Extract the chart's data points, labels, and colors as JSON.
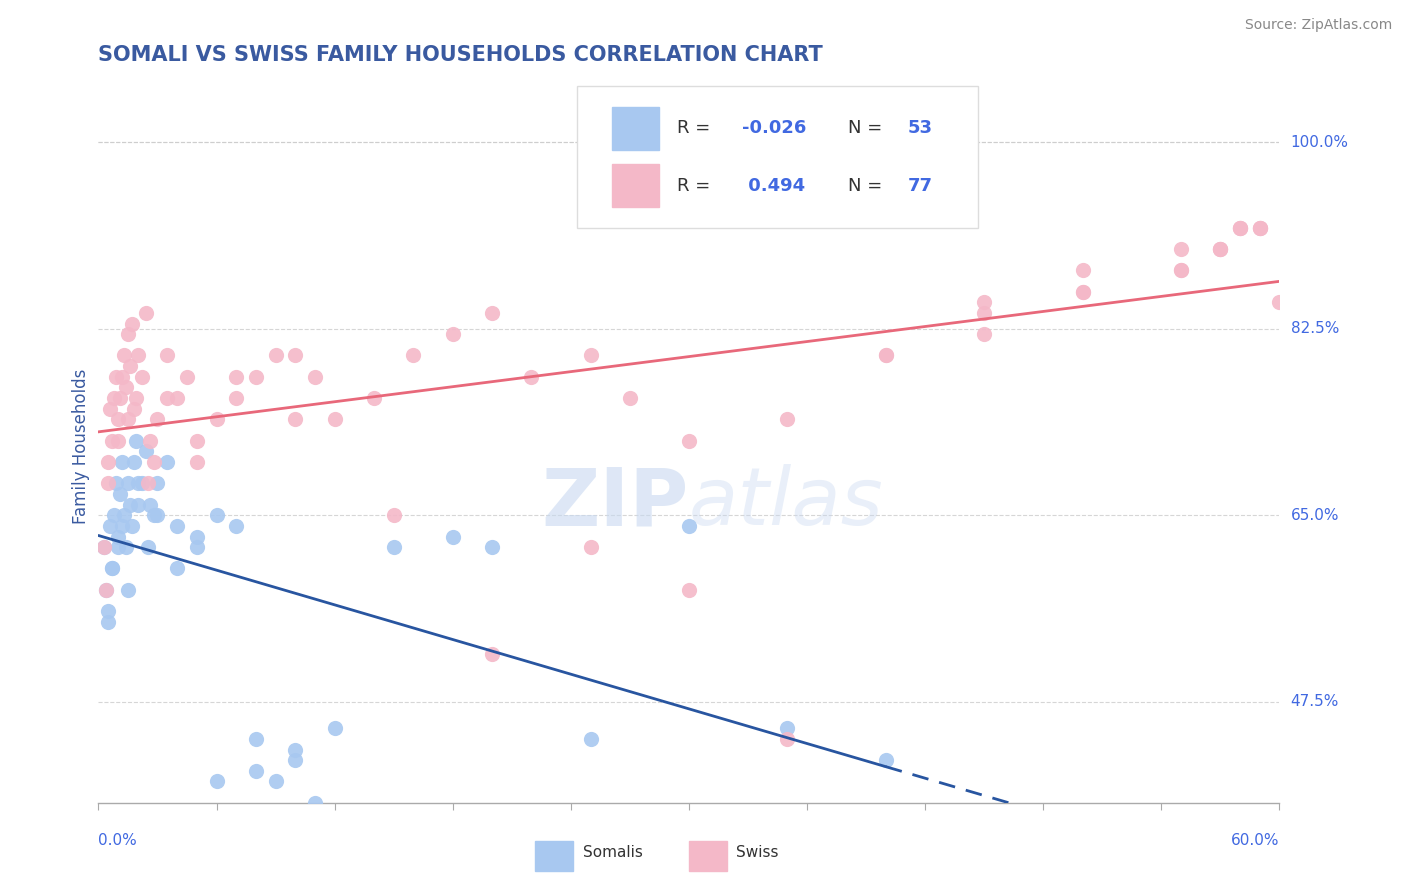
{
  "title": "SOMALI VS SWISS FAMILY HOUSEHOLDS CORRELATION CHART",
  "source": "Source: ZipAtlas.com",
  "ylabel": "Family Households",
  "xmin": 0.0,
  "xmax": 60.0,
  "ymin": 38.0,
  "ymax": 105.0,
  "yticks": [
    47.5,
    65.0,
    82.5,
    100.0
  ],
  "ytick_labels": [
    "47.5%",
    "65.0%",
    "82.5%",
    "100.0%"
  ],
  "somali_dot_color": "#a8c8f0",
  "swiss_dot_color": "#f4b8c8",
  "somali_line_color": "#2855a0",
  "swiss_line_color": "#e8687a",
  "somali_R": "-0.026",
  "somali_N": "53",
  "swiss_R": "0.494",
  "swiss_N": "77",
  "legend_R_color": "#4169E1",
  "legend_N_color": "#4169E1",
  "somali_x": [
    0.3,
    0.4,
    0.5,
    0.6,
    0.7,
    0.8,
    0.9,
    1.0,
    1.1,
    1.2,
    1.3,
    1.4,
    1.5,
    1.6,
    1.7,
    1.8,
    1.9,
    2.0,
    2.2,
    2.4,
    2.6,
    2.8,
    3.0,
    3.5,
    4.0,
    5.0,
    6.0,
    7.0,
    8.0,
    9.0,
    10.0,
    11.0,
    12.0,
    15.0,
    18.0,
    20.0,
    25.0,
    30.0,
    35.0,
    40.0,
    0.5,
    0.7,
    1.0,
    1.2,
    1.5,
    2.0,
    2.5,
    3.0,
    4.0,
    5.0,
    6.0,
    8.0,
    10.0
  ],
  "somali_y": [
    62,
    58,
    55,
    64,
    60,
    65,
    68,
    63,
    67,
    70,
    65,
    62,
    68,
    66,
    64,
    70,
    72,
    66,
    68,
    71,
    66,
    65,
    68,
    70,
    64,
    63,
    65,
    64,
    44,
    40,
    42,
    38,
    45,
    62,
    63,
    62,
    44,
    64,
    45,
    42,
    56,
    60,
    62,
    64,
    58,
    68,
    62,
    65,
    60,
    62,
    40,
    41,
    43
  ],
  "swiss_x": [
    0.3,
    0.4,
    0.5,
    0.6,
    0.7,
    0.8,
    0.9,
    1.0,
    1.1,
    1.2,
    1.3,
    1.4,
    1.5,
    1.6,
    1.7,
    1.8,
    1.9,
    2.0,
    2.2,
    2.4,
    2.6,
    2.8,
    3.0,
    3.5,
    4.0,
    4.5,
    5.0,
    6.0,
    7.0,
    8.0,
    9.0,
    10.0,
    11.0,
    12.0,
    14.0,
    16.0,
    18.0,
    20.0,
    22.0,
    25.0,
    27.0,
    30.0,
    35.0,
    40.0,
    45.0,
    50.0,
    55.0,
    57.0,
    58.0,
    59.0,
    0.5,
    1.0,
    1.5,
    2.5,
    3.5,
    5.0,
    7.0,
    10.0,
    15.0,
    20.0,
    25.0,
    30.0,
    35.0,
    40.0,
    45.0,
    50.0,
    55.0,
    57.0,
    58.0,
    59.0,
    45.0,
    50.0,
    55.0,
    57.0,
    58.0,
    59.0,
    60.0
  ],
  "swiss_y": [
    62,
    58,
    68,
    75,
    72,
    76,
    78,
    74,
    76,
    78,
    80,
    77,
    82,
    79,
    83,
    75,
    76,
    80,
    78,
    84,
    72,
    70,
    74,
    80,
    76,
    78,
    72,
    74,
    76,
    78,
    80,
    74,
    78,
    74,
    76,
    80,
    82,
    84,
    78,
    80,
    76,
    72,
    74,
    80,
    82,
    86,
    88,
    90,
    92,
    92,
    70,
    72,
    74,
    68,
    76,
    70,
    78,
    80,
    65,
    52,
    62,
    58,
    44,
    80,
    84,
    88,
    88,
    90,
    92,
    92,
    85,
    86,
    90,
    90,
    92,
    92,
    85
  ],
  "watermark_text": "ZIP",
  "watermark_text2": "atlas",
  "grid_color": "#cccccc",
  "title_color": "#3a5aa0",
  "axis_label_color": "#3a5aa0",
  "tick_label_color": "#4169E1",
  "background_color": "#ffffff"
}
